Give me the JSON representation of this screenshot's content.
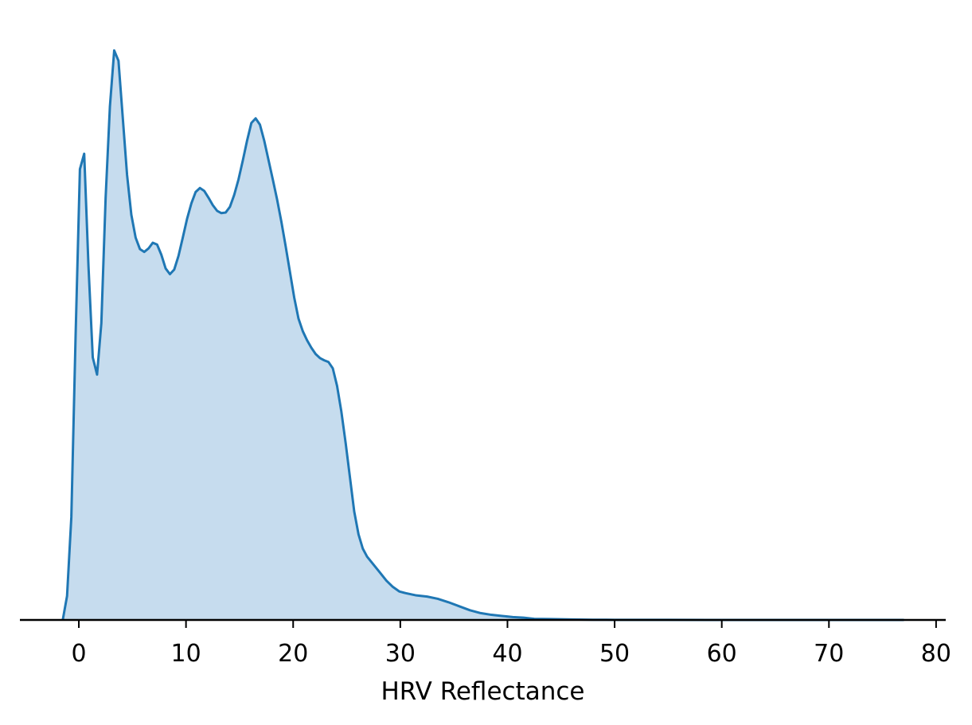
{
  "chart_data": {
    "type": "area",
    "title": "",
    "xlabel": "HRV Reflectance",
    "ylabel": "",
    "xlim": [
      -5.5,
      80.9
    ],
    "ylim": [
      0,
      1.0
    ],
    "x_ticks": [
      0,
      10,
      20,
      30,
      40,
      50,
      60,
      70,
      80
    ],
    "x_tick_labels": [
      "0",
      "10",
      "20",
      "30",
      "40",
      "50",
      "60",
      "70",
      "80"
    ],
    "y_axis_visible": false,
    "grid": false,
    "line_color": "#1f77b4",
    "fill_color": "#c6dcee",
    "series": [
      {
        "x": [
          -1.5,
          -1.1,
          -0.7,
          -0.3,
          0.1,
          0.5,
          0.9,
          1.3,
          1.7,
          2.1,
          2.5,
          2.9,
          3.3,
          3.7,
          4.1,
          4.5,
          4.9,
          5.3,
          5.7,
          6.1,
          6.5,
          6.9,
          7.3,
          7.7,
          8.1,
          8.5,
          8.9,
          9.3,
          9.7,
          10.1,
          10.5,
          10.9,
          11.3,
          11.7,
          12.1,
          12.5,
          12.9,
          13.3,
          13.7,
          14.1,
          14.5,
          14.9,
          15.3,
          15.7,
          16.1,
          16.5,
          16.9,
          17.3,
          17.7,
          18.1,
          18.5,
          18.9,
          19.3,
          19.7,
          20.1,
          20.5,
          20.9,
          21.3,
          21.7,
          22.1,
          22.5,
          22.9,
          23.3,
          23.7,
          24.1,
          24.5,
          24.9,
          25.3,
          25.7,
          26.1,
          26.5,
          26.9,
          27.5,
          28.1,
          28.7,
          29.3,
          29.9,
          30.5,
          31.5,
          32.5,
          33.5,
          34.5,
          35.5,
          36.5,
          37.5,
          38.5,
          39.5,
          40.5,
          41.5,
          42.5,
          44.0,
          46.0,
          48.0,
          50.0,
          55.0,
          60.0,
          65.0,
          70.0,
          75.0,
          77.0
        ],
        "y": [
          0.0,
          0.042,
          0.18,
          0.5,
          0.79,
          0.817,
          0.62,
          0.46,
          0.43,
          0.52,
          0.74,
          0.9,
          0.998,
          0.98,
          0.88,
          0.78,
          0.71,
          0.67,
          0.65,
          0.645,
          0.651,
          0.661,
          0.658,
          0.64,
          0.616,
          0.606,
          0.614,
          0.638,
          0.67,
          0.703,
          0.73,
          0.75,
          0.757,
          0.752,
          0.74,
          0.727,
          0.717,
          0.713,
          0.714,
          0.724,
          0.745,
          0.772,
          0.805,
          0.84,
          0.871,
          0.879,
          0.868,
          0.84,
          0.806,
          0.772,
          0.737,
          0.698,
          0.655,
          0.61,
          0.565,
          0.528,
          0.506,
          0.49,
          0.477,
          0.466,
          0.459,
          0.455,
          0.452,
          0.441,
          0.41,
          0.365,
          0.31,
          0.25,
          0.19,
          0.15,
          0.125,
          0.111,
          0.097,
          0.083,
          0.069,
          0.058,
          0.05,
          0.047,
          0.043,
          0.041,
          0.037,
          0.031,
          0.024,
          0.017,
          0.012,
          0.009,
          0.007,
          0.005,
          0.004,
          0.002,
          0.0015,
          0.0008,
          0.0004,
          0.0002,
          0.0001,
          0.0,
          0.0,
          0.0,
          0.0,
          0.0
        ]
      }
    ]
  }
}
